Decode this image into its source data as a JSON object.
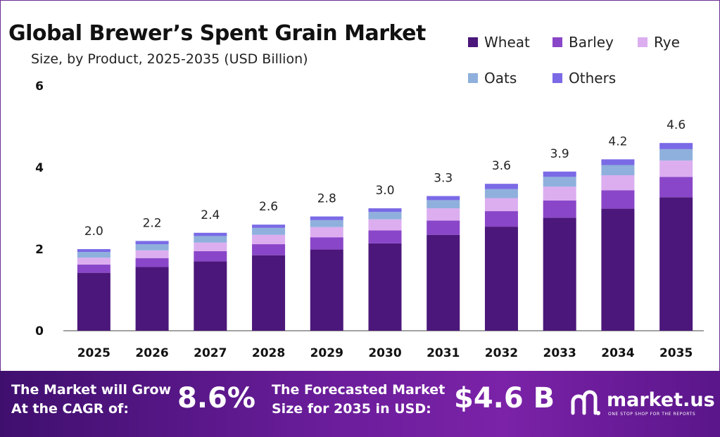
{
  "title": "Global Brewer’s Spent Grain Market",
  "subtitle": "Size, by Product, 2025-2035 (USD Billion)",
  "colors": {
    "wheat": "#4b177a",
    "barley": "#8a46c8",
    "rye": "#dcaef0",
    "oats": "#8fb0dc",
    "others": "#7a6ae6",
    "footer_start": "#3f0f6e",
    "footer_end": "#7b22a8"
  },
  "chart_data": {
    "type": "bar",
    "stacked": true,
    "categories": [
      "2025",
      "2026",
      "2027",
      "2028",
      "2029",
      "2030",
      "2031",
      "2032",
      "2033",
      "2034",
      "2035"
    ],
    "totals": [
      "2.0",
      "2.2",
      "2.4",
      "2.6",
      "2.8",
      "3.0",
      "3.3",
      "3.6",
      "3.9",
      "4.2",
      "4.6"
    ],
    "series": [
      {
        "name": "Wheat",
        "color": "#4b177a",
        "values": [
          1.42,
          1.56,
          1.7,
          1.85,
          1.99,
          2.14,
          2.35,
          2.55,
          2.77,
          2.99,
          3.27
        ]
      },
      {
        "name": "Barley",
        "color": "#8a46c8",
        "values": [
          0.2,
          0.22,
          0.25,
          0.27,
          0.3,
          0.32,
          0.35,
          0.38,
          0.42,
          0.45,
          0.5
        ]
      },
      {
        "name": "Rye",
        "color": "#dcaef0",
        "values": [
          0.17,
          0.19,
          0.21,
          0.23,
          0.25,
          0.27,
          0.3,
          0.32,
          0.34,
          0.37,
          0.4
        ]
      },
      {
        "name": "Oats",
        "color": "#8fb0dc",
        "values": [
          0.14,
          0.15,
          0.16,
          0.17,
          0.17,
          0.18,
          0.2,
          0.22,
          0.24,
          0.25,
          0.28
        ]
      },
      {
        "name": "Others",
        "color": "#7a6ae6",
        "values": [
          0.07,
          0.08,
          0.08,
          0.08,
          0.09,
          0.09,
          0.1,
          0.13,
          0.13,
          0.14,
          0.15
        ]
      }
    ],
    "y_ticks": [
      "0",
      "2",
      "4",
      "6"
    ],
    "ylim": [
      0,
      6
    ],
    "grid": false,
    "legend_position": "top-right"
  },
  "footer": {
    "cagr_label_line1": "The Market will Grow",
    "cagr_label_line2": "At the CAGR of:",
    "cagr_value": "8.6%",
    "forecast_label_line1": "The Forecasted Market",
    "forecast_label_line2": "Size for 2035 in USD:",
    "forecast_value": "$4.6 B",
    "brand_name": "market.us",
    "brand_tagline": "ONE STOP SHOP FOR THE REPORTS"
  }
}
